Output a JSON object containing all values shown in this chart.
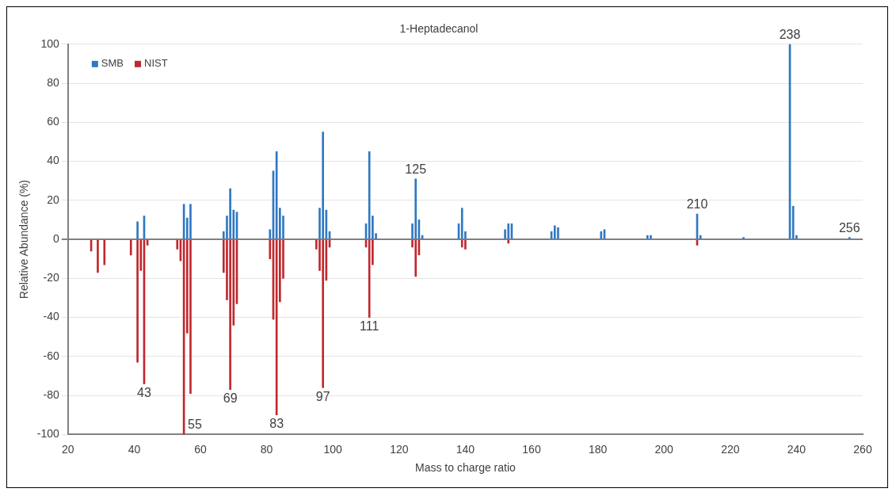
{
  "chart_data": {
    "type": "bar",
    "title": "1-Heptadecanol",
    "xlabel": "Mass to charge ratio",
    "ylabel": "Relative Abundance (%)",
    "xlim": [
      20,
      260
    ],
    "xticks": [
      20,
      40,
      60,
      80,
      100,
      120,
      140,
      160,
      180,
      200,
      220,
      240,
      260
    ],
    "ylim": [
      -100,
      100
    ],
    "yticks": [
      -100,
      -80,
      -60,
      -40,
      -20,
      0,
      20,
      40,
      60,
      80,
      100
    ],
    "grid": "y",
    "legend": "top left",
    "series": [
      {
        "name": "SMB",
        "color": "#2e78c2",
        "x": [
          41,
          43,
          55,
          56,
          57,
          67,
          68,
          69,
          70,
          71,
          81,
          82,
          83,
          84,
          85,
          96,
          97,
          98,
          99,
          110,
          111,
          112,
          113,
          124,
          125,
          126,
          127,
          138,
          139,
          140,
          152,
          153,
          154,
          166,
          167,
          168,
          181,
          182,
          195,
          196,
          210,
          211,
          224,
          238,
          239,
          240,
          256
        ],
        "values": [
          9,
          12,
          18,
          11,
          18,
          4,
          12,
          26,
          15,
          14,
          5,
          35,
          45,
          16,
          12,
          16,
          55,
          15,
          4,
          8,
          45,
          12,
          3,
          8,
          31,
          10,
          2,
          8,
          16,
          4,
          5,
          8,
          8,
          4,
          7,
          6,
          4,
          5,
          2,
          2,
          13,
          2,
          1,
          100,
          17,
          2,
          1
        ]
      },
      {
        "name": "NIST",
        "color": "#c0282d",
        "x": [
          27,
          29,
          31,
          39,
          41,
          42,
          43,
          44,
          53,
          54,
          55,
          56,
          57,
          67,
          68,
          69,
          70,
          71,
          81,
          82,
          83,
          84,
          85,
          95,
          96,
          97,
          98,
          99,
          110,
          111,
          112,
          124,
          125,
          126,
          139,
          140,
          153,
          210
        ],
        "values": [
          -6,
          -17,
          -13,
          -8,
          -63,
          -16,
          -74,
          -3,
          -5,
          -11,
          -100,
          -48,
          -79,
          -17,
          -31,
          -77,
          -44,
          -33,
          -10,
          -41,
          -90,
          -32,
          -20,
          -5,
          -16,
          -76,
          -21,
          -4,
          -4,
          -40,
          -13,
          -4,
          -19,
          -8,
          -4,
          -5,
          -2,
          -3
        ]
      }
    ],
    "annotations": [
      {
        "text": "43",
        "x": 43,
        "y": -74
      },
      {
        "text": "55",
        "x": 55,
        "y": -100
      },
      {
        "text": "69",
        "x": 69,
        "y": -77
      },
      {
        "text": "83",
        "x": 83,
        "y": -90
      },
      {
        "text": "97",
        "x": 97,
        "y": -76
      },
      {
        "text": "111",
        "x": 111,
        "y": -40
      },
      {
        "text": "125",
        "x": 125,
        "y": 31
      },
      {
        "text": "210",
        "x": 210,
        "y": 13
      },
      {
        "text": "238",
        "x": 238,
        "y": 100
      },
      {
        "text": "256",
        "x": 256,
        "y": 1
      }
    ]
  }
}
